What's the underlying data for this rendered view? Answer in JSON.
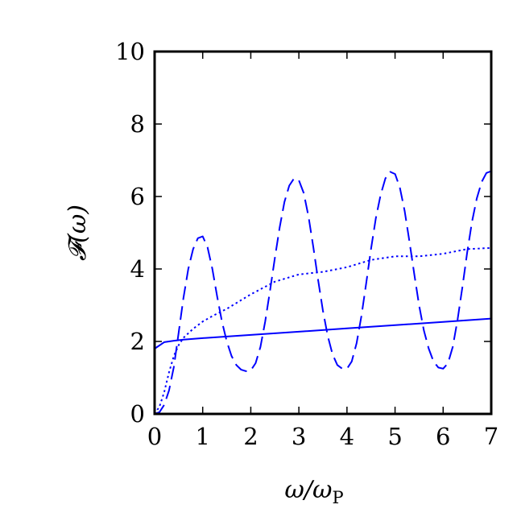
{
  "chart_data": {
    "type": "line",
    "xlabel": "ω/ω",
    "xlabel_sub": "P",
    "ylabel": "𝓕(ω)",
    "xlim": [
      0,
      7
    ],
    "ylim": [
      0,
      10
    ],
    "x_ticks": [
      0,
      1,
      2,
      3,
      4,
      5,
      6,
      7
    ],
    "y_ticks": [
      0,
      2,
      4,
      6,
      8,
      10
    ],
    "grid": false,
    "series_color": "#0000ff",
    "series": [
      {
        "style": "solid",
        "x": [
          0,
          0.2,
          0.4,
          0.6,
          1,
          2,
          3,
          4,
          5,
          6,
          7
        ],
        "y": [
          1.8,
          1.98,
          2.02,
          2.05,
          2.09,
          2.18,
          2.27,
          2.36,
          2.45,
          2.54,
          2.63
        ]
      },
      {
        "style": "dashed",
        "x": [
          0,
          0.1,
          0.2,
          0.3,
          0.4,
          0.5,
          0.6,
          0.7,
          0.8,
          0.9,
          1,
          1.1,
          1.2,
          1.3,
          1.4,
          1.5,
          1.6,
          1.7,
          1.8,
          1.9,
          2,
          2.1,
          2.2,
          2.3,
          2.4,
          2.5,
          2.6,
          2.7,
          2.8,
          2.9,
          3,
          3.1,
          3.2,
          3.3,
          3.4,
          3.5,
          3.6,
          3.7,
          3.8,
          3.9,
          4,
          4.1,
          4.2,
          4.3,
          4.4,
          4.5,
          4.6,
          4.7,
          4.8,
          4.9,
          5,
          5.1,
          5.2,
          5.3,
          5.4,
          5.5,
          5.6,
          5.7,
          5.8,
          5.9,
          6,
          6.1,
          6.2,
          6.3,
          6.4,
          6.5,
          6.6,
          6.7,
          6.8,
          6.9,
          7
        ],
        "y": [
          0,
          0.05,
          0.25,
          0.65,
          1.3,
          2.25,
          3.2,
          4.0,
          4.55,
          4.85,
          4.9,
          4.6,
          4.0,
          3.25,
          2.55,
          2.0,
          1.6,
          1.35,
          1.22,
          1.18,
          1.2,
          1.4,
          1.85,
          2.55,
          3.4,
          4.3,
          5.15,
          5.85,
          6.3,
          6.5,
          6.45,
          6.1,
          5.45,
          4.6,
          3.7,
          2.85,
          2.15,
          1.65,
          1.35,
          1.25,
          1.25,
          1.45,
          1.95,
          2.7,
          3.6,
          4.55,
          5.4,
          6.05,
          6.5,
          6.68,
          6.62,
          6.25,
          5.6,
          4.75,
          3.85,
          3.0,
          2.3,
          1.8,
          1.45,
          1.28,
          1.25,
          1.4,
          1.85,
          2.6,
          3.5,
          4.45,
          5.3,
          5.95,
          6.4,
          6.65,
          6.7
        ]
      },
      {
        "style": "dotted",
        "x": [
          0,
          0.1,
          0.2,
          0.3,
          0.4,
          0.5,
          0.6,
          0.8,
          1,
          1.2,
          1.5,
          2,
          2.5,
          3,
          3.5,
          4,
          4.5,
          5,
          5.5,
          6,
          6.5,
          7
        ],
        "y": [
          0,
          0.2,
          0.6,
          1.15,
          1.6,
          1.9,
          2.1,
          2.35,
          2.55,
          2.7,
          2.9,
          3.3,
          3.65,
          3.85,
          3.92,
          4.05,
          4.25,
          4.35,
          4.35,
          4.42,
          4.55,
          4.58
        ]
      }
    ]
  }
}
